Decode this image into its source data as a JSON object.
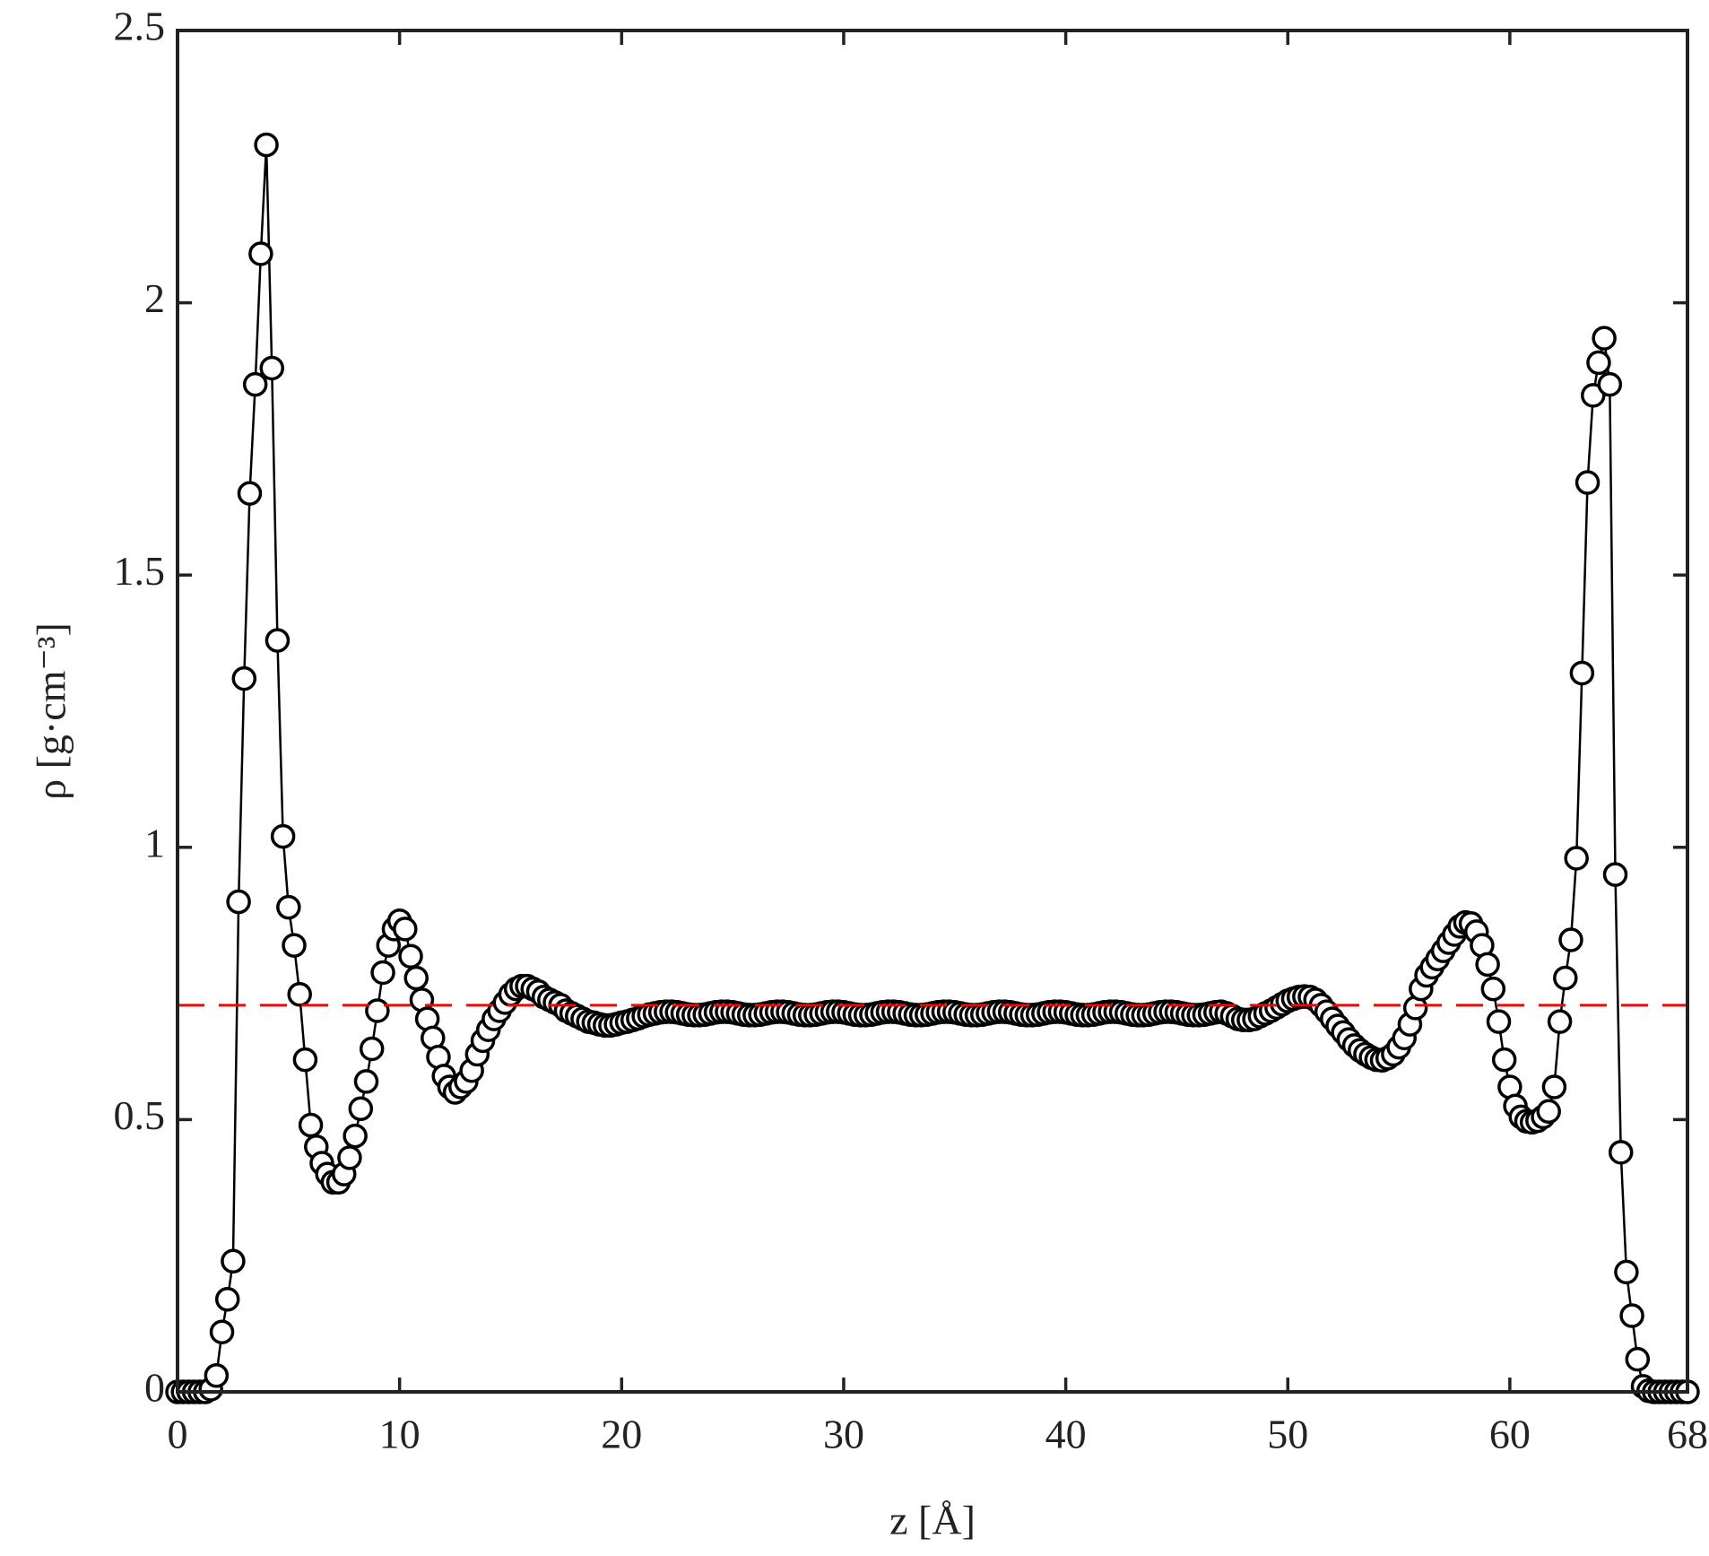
{
  "chart_data": {
    "type": "line",
    "marker": "circle",
    "color": "#000000",
    "marker_fill": "#ffffff",
    "xlabel": "z [Å]",
    "ylabel": "ρ [g·cm⁻³]",
    "xlim": [
      0,
      68
    ],
    "xticks": [
      0,
      10,
      20,
      30,
      40,
      50,
      60,
      68
    ],
    "ylim": [
      0,
      2.5
    ],
    "yticks": [
      0,
      0.5,
      1,
      1.5,
      2,
      2.5
    ],
    "reference_line": {
      "value": 0.71,
      "color": "#ff0000",
      "style": "dashed"
    },
    "x": [
      0,
      0.25,
      0.5,
      0.75,
      1,
      1.25,
      1.5,
      1.75,
      2,
      2.25,
      2.5,
      2.75,
      3,
      3.25,
      3.5,
      3.75,
      4,
      4.25,
      4.5,
      4.75,
      5,
      5.25,
      5.5,
      5.75,
      6,
      6.25,
      6.5,
      6.75,
      7,
      7.25,
      7.5,
      7.75,
      8,
      8.25,
      8.5,
      8.75,
      9,
      9.25,
      9.5,
      9.75,
      10,
      10.25,
      10.5,
      10.75,
      11,
      11.25,
      11.5,
      11.75,
      12,
      12.25,
      12.5,
      12.75,
      13,
      13.25,
      13.5,
      13.75,
      14,
      14.25,
      14.5,
      14.75,
      15,
      15.25,
      15.5,
      15.75,
      16,
      16.25,
      16.5,
      16.75,
      17,
      17.25,
      17.5,
      17.75,
      18,
      18.25,
      18.5,
      18.75,
      19,
      19.25,
      19.5,
      19.75,
      20,
      20.25,
      20.5,
      20.75,
      21,
      21.25,
      21.5,
      21.75,
      22,
      22.25,
      22.5,
      22.75,
      23,
      23.25,
      23.5,
      23.75,
      24,
      24.25,
      24.5,
      24.75,
      25,
      25.25,
      25.5,
      25.75,
      26,
      26.25,
      26.5,
      26.75,
      27,
      27.25,
      27.5,
      27.75,
      28,
      28.25,
      28.5,
      28.75,
      29,
      29.25,
      29.5,
      29.75,
      30,
      30.25,
      30.5,
      30.75,
      31,
      31.25,
      31.5,
      31.75,
      32,
      32.25,
      32.5,
      32.75,
      33,
      33.25,
      33.5,
      33.75,
      34,
      34.25,
      34.5,
      34.75,
      35,
      35.25,
      35.5,
      35.75,
      36,
      36.25,
      36.5,
      36.75,
      37,
      37.25,
      37.5,
      37.75,
      38,
      38.25,
      38.5,
      38.75,
      39,
      39.25,
      39.5,
      39.75,
      40,
      40.25,
      40.5,
      40.75,
      41,
      41.25,
      41.5,
      41.75,
      42,
      42.25,
      42.5,
      42.75,
      43,
      43.25,
      43.5,
      43.75,
      44,
      44.25,
      44.5,
      44.75,
      45,
      45.25,
      45.5,
      45.75,
      46,
      46.25,
      46.5,
      46.75,
      47,
      47.25,
      47.5,
      47.75,
      48,
      48.25,
      48.5,
      48.75,
      49,
      49.25,
      49.5,
      49.75,
      50,
      50.25,
      50.5,
      50.75,
      51,
      51.25,
      51.5,
      51.75,
      52,
      52.25,
      52.5,
      52.75,
      53,
      53.25,
      53.5,
      53.75,
      54,
      54.25,
      54.5,
      54.75,
      55,
      55.25,
      55.5,
      55.75,
      56,
      56.25,
      56.5,
      56.75,
      57,
      57.25,
      57.5,
      57.75,
      58,
      58.25,
      58.5,
      58.75,
      59,
      59.25,
      59.5,
      59.75,
      60,
      60.25,
      60.5,
      60.75,
      61,
      61.25,
      61.5,
      61.75,
      62,
      62.25,
      62.5,
      62.75,
      63,
      63.25,
      63.5,
      63.75,
      64,
      64.25,
      64.5,
      64.75,
      65,
      65.25,
      65.5,
      65.75,
      66,
      66.25,
      66.5,
      66.75,
      67,
      67.25,
      67.5,
      67.75,
      68
    ],
    "values": [
      0,
      0,
      0,
      0,
      0,
      0,
      0.005,
      0.03,
      0.11,
      0.17,
      0.24,
      0.9,
      1.31,
      1.65,
      1.85,
      2.09,
      2.29,
      1.88,
      1.38,
      1.02,
      0.89,
      0.82,
      0.73,
      0.61,
      0.49,
      0.45,
      0.42,
      0.4,
      0.385,
      0.385,
      0.4,
      0.43,
      0.47,
      0.52,
      0.57,
      0.63,
      0.7,
      0.77,
      0.82,
      0.85,
      0.865,
      0.85,
      0.8,
      0.76,
      0.72,
      0.685,
      0.65,
      0.615,
      0.58,
      0.56,
      0.55,
      0.56,
      0.57,
      0.59,
      0.62,
      0.645,
      0.665,
      0.685,
      0.7,
      0.715,
      0.73,
      0.74,
      0.745,
      0.745,
      0.74,
      0.735,
      0.725,
      0.72,
      0.715,
      0.71,
      0.7,
      0.695,
      0.69,
      0.685,
      0.68,
      0.678,
      0.675,
      0.673,
      0.673,
      0.675,
      0.678,
      0.68,
      0.683,
      0.686,
      0.69,
      0.693,
      0.695,
      0.697,
      0.698,
      0.698,
      0.697,
      0.695,
      0.693,
      0.692,
      0.692,
      0.693,
      0.695,
      0.697,
      0.698,
      0.698,
      0.697,
      0.695,
      0.693,
      0.692,
      0.692,
      0.693,
      0.695,
      0.697,
      0.698,
      0.698,
      0.697,
      0.695,
      0.693,
      0.692,
      0.692,
      0.693,
      0.695,
      0.697,
      0.698,
      0.698,
      0.697,
      0.695,
      0.693,
      0.692,
      0.692,
      0.693,
      0.695,
      0.697,
      0.698,
      0.698,
      0.697,
      0.695,
      0.693,
      0.692,
      0.692,
      0.693,
      0.695,
      0.697,
      0.698,
      0.698,
      0.697,
      0.695,
      0.693,
      0.692,
      0.692,
      0.693,
      0.695,
      0.697,
      0.698,
      0.698,
      0.697,
      0.695,
      0.693,
      0.692,
      0.692,
      0.693,
      0.695,
      0.697,
      0.698,
      0.698,
      0.697,
      0.695,
      0.693,
      0.692,
      0.692,
      0.693,
      0.695,
      0.697,
      0.698,
      0.698,
      0.697,
      0.695,
      0.693,
      0.692,
      0.692,
      0.693,
      0.695,
      0.697,
      0.698,
      0.698,
      0.697,
      0.695,
      0.693,
      0.692,
      0.692,
      0.693,
      0.695,
      0.697,
      0.698,
      0.695,
      0.69,
      0.685,
      0.683,
      0.683,
      0.685,
      0.69,
      0.695,
      0.7,
      0.706,
      0.712,
      0.718,
      0.722,
      0.725,
      0.726,
      0.725,
      0.72,
      0.71,
      0.698,
      0.685,
      0.672,
      0.66,
      0.647,
      0.636,
      0.627,
      0.62,
      0.614,
      0.61,
      0.609,
      0.613,
      0.62,
      0.633,
      0.65,
      0.675,
      0.705,
      0.74,
      0.765,
      0.78,
      0.795,
      0.81,
      0.825,
      0.84,
      0.855,
      0.862,
      0.86,
      0.845,
      0.82,
      0.785,
      0.74,
      0.68,
      0.61,
      0.56,
      0.525,
      0.505,
      0.497,
      0.495,
      0.498,
      0.505,
      0.515,
      0.56,
      0.68,
      0.76,
      0.83,
      0.98,
      1.32,
      1.67,
      1.83,
      1.89,
      1.935,
      1.85,
      0.95,
      0.44,
      0.22,
      0.14,
      0.06,
      0.01,
      0.002,
      0,
      0,
      0,
      0,
      0,
      0,
      0
    ]
  }
}
